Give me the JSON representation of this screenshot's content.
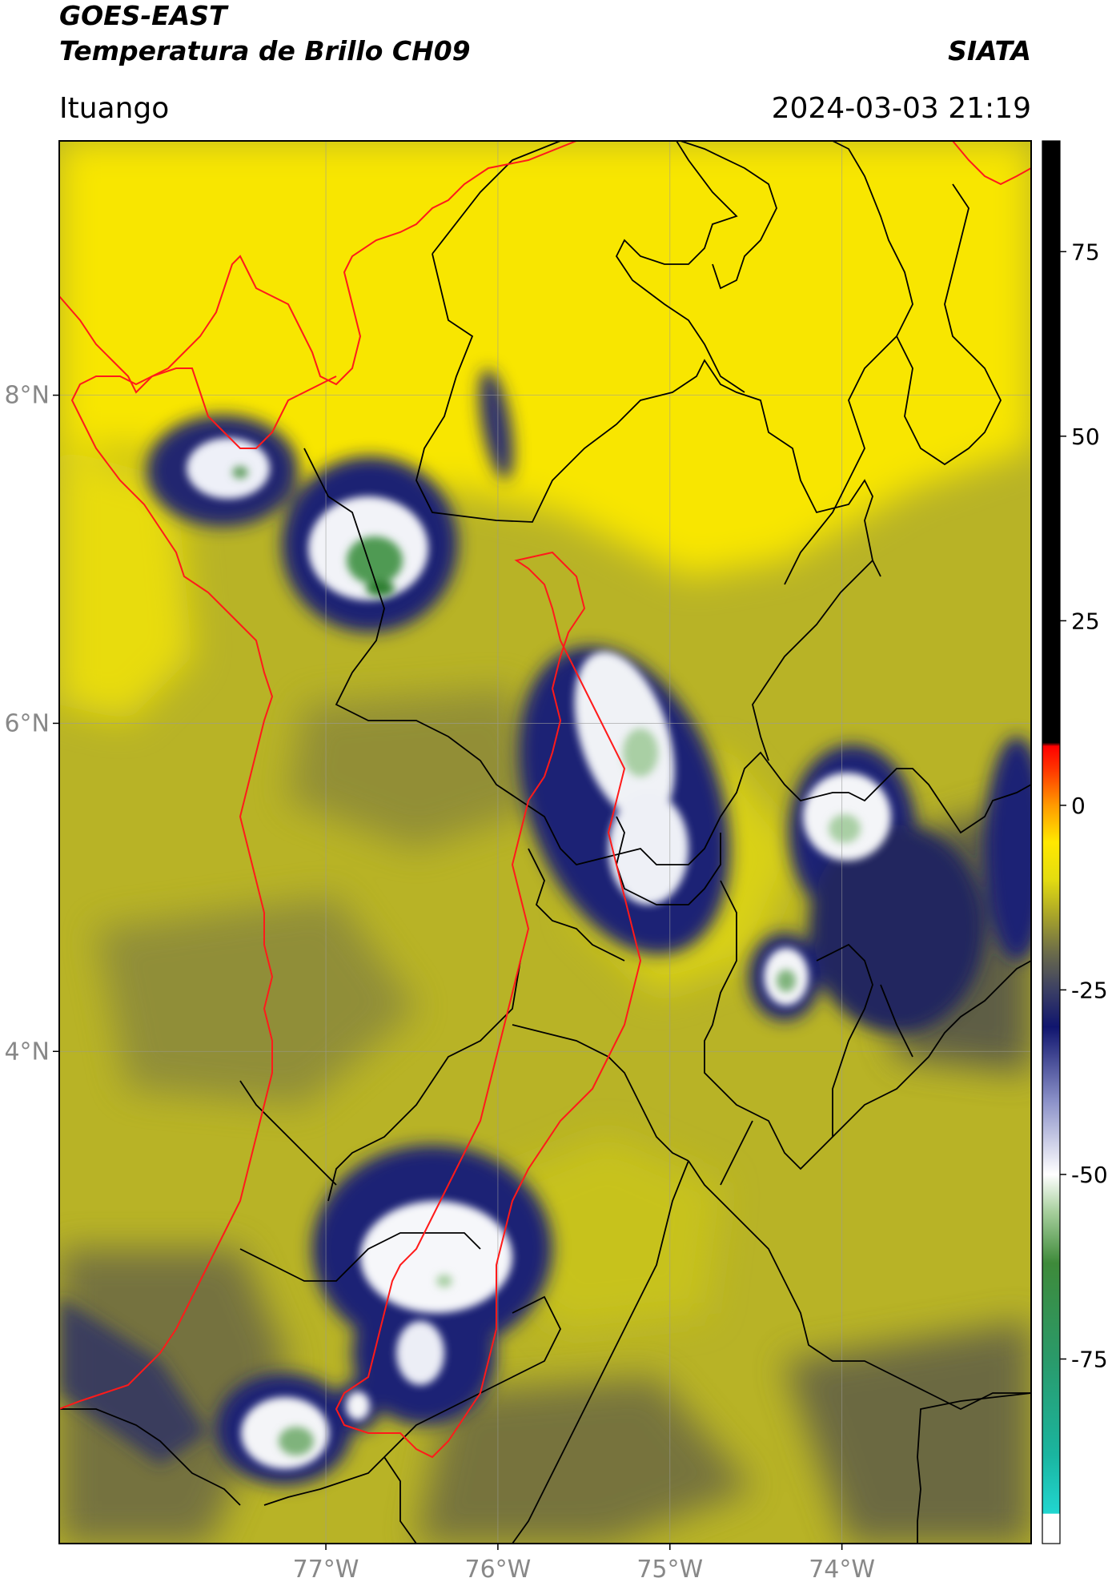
{
  "header": {
    "satellite": "GOES-EAST",
    "product": "Temperatura de Brillo CH09",
    "organization": "SIATA",
    "region": "Ituango",
    "timestamp": "2024-03-03 21:19"
  },
  "map": {
    "lon_range": [
      -78.55,
      -72.9
    ],
    "lat_range": [
      1.0,
      9.55
    ],
    "lat_ticks": [
      {
        "value": 8,
        "label": "8°N"
      },
      {
        "value": 6,
        "label": "6°N"
      },
      {
        "value": 4,
        "label": "4°N"
      }
    ],
    "lon_ticks": [
      {
        "value": -77,
        "label": "77°W"
      },
      {
        "value": -76,
        "label": "76°W"
      },
      {
        "value": -75,
        "label": "75°W"
      },
      {
        "value": -74,
        "label": "74°W"
      }
    ],
    "colors": {
      "background_warm": "#f7e800",
      "olive": "#a9a51e",
      "dark_olive": "#6f6f3a",
      "cold_navy": "#1a1e78",
      "cold_white": "#f4f5f8",
      "cold_green": "#3f8a3e",
      "coastline": "#ff1a1a",
      "borders": "#000000",
      "grid": "#9a9a9a"
    }
  },
  "colorbar": {
    "range": [
      -100,
      90
    ],
    "ticks": [
      {
        "value": 75,
        "label": "75"
      },
      {
        "value": 50,
        "label": "50"
      },
      {
        "value": 25,
        "label": "25"
      },
      {
        "value": 0,
        "label": "0"
      },
      {
        "value": -25,
        "label": "-25"
      },
      {
        "value": -50,
        "label": "-50"
      },
      {
        "value": -75,
        "label": "-75"
      }
    ],
    "stops": [
      {
        "value": -100,
        "color": "#ffffff"
      },
      {
        "value": -96,
        "color": "#ffffff"
      },
      {
        "value": -95.9,
        "color": "#21d6d0"
      },
      {
        "value": -88,
        "color": "#1ab5a0"
      },
      {
        "value": -75,
        "color": "#2a9a6a"
      },
      {
        "value": -62,
        "color": "#3e8a3a"
      },
      {
        "value": -55,
        "color": "#a8d09e"
      },
      {
        "value": -50,
        "color": "#ffffff"
      },
      {
        "value": -40,
        "color": "#8a90c8"
      },
      {
        "value": -30,
        "color": "#10156e"
      },
      {
        "value": -25,
        "color": "#3b3f64"
      },
      {
        "value": -20,
        "color": "#6b6b4a"
      },
      {
        "value": -15,
        "color": "#a8a42a"
      },
      {
        "value": -10,
        "color": "#e4dc10"
      },
      {
        "value": -5,
        "color": "#ffe800"
      },
      {
        "value": 0,
        "color": "#ff9a00"
      },
      {
        "value": 5,
        "color": "#ff3300"
      },
      {
        "value": 8,
        "color": "#ff0000"
      },
      {
        "value": 8.5,
        "color": "#000000"
      },
      {
        "value": 90,
        "color": "#000000"
      }
    ]
  }
}
